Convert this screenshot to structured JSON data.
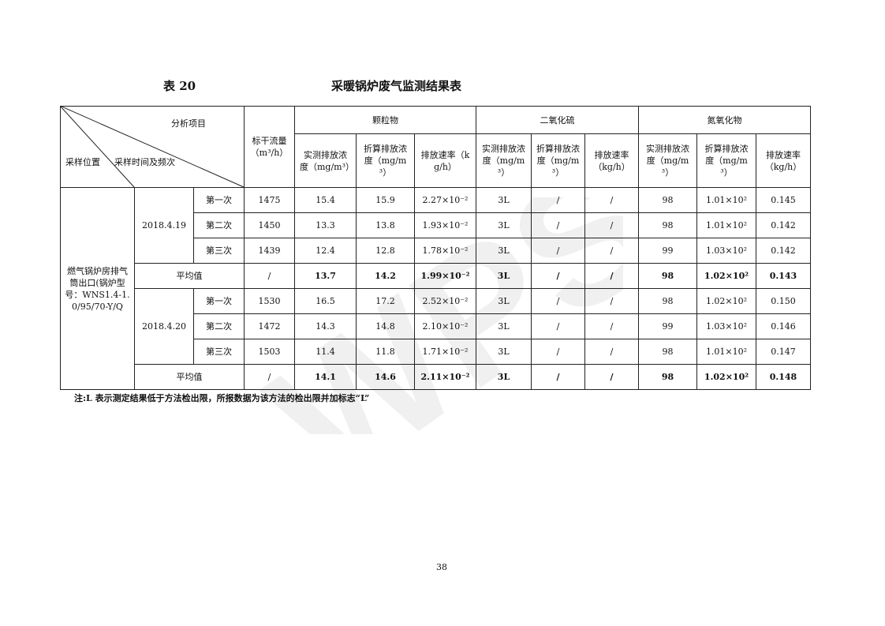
{
  "title_number": "表 20",
  "title": "采暖锅炉废气监测结果表",
  "header": {
    "corner_top": "分析项目",
    "corner_location": "采样位置",
    "corner_time": "采样时间及频次",
    "flow": "标干流量",
    "flow_unit": "（m³/h）",
    "groups": [
      "颗粒物",
      "二氧化硫",
      "氮氧化物"
    ],
    "subcols": [
      "实测排放浓度（mg/m³）",
      "折算排放浓度（mg/m³）",
      "排放速率（kg/h）",
      "实测排放浓度（mg/m³）",
      "折算排放浓度（mg/m³）",
      "排放速率（kg/h）",
      "实测排放浓度（mg/m³）",
      "折算排放浓度（mg/m³）",
      "排放速率（kg/h）"
    ]
  },
  "location": "燃气锅炉房排气筒出口(锅炉型号：WNS1.4-1.0/95/70-Y/Q",
  "groups": [
    {
      "date": "2018.4.19",
      "rows": [
        {
          "run": "第一次",
          "flow": "1475",
          "pm": [
            "15.4",
            "15.9",
            "2.27×10⁻²"
          ],
          "so2": [
            "3L",
            "/",
            "/"
          ],
          "nox": [
            "98",
            "1.01×10²",
            "0.145"
          ]
        },
        {
          "run": "第二次",
          "flow": "1450",
          "pm": [
            "13.3",
            "13.8",
            "1.93×10⁻²"
          ],
          "so2": [
            "3L",
            "/",
            "/"
          ],
          "nox": [
            "98",
            "1.01×10²",
            "0.142"
          ]
        },
        {
          "run": "第三次",
          "flow": "1439",
          "pm": [
            "12.4",
            "12.8",
            "1.78×10⁻²"
          ],
          "so2": [
            "3L",
            "/",
            "/"
          ],
          "nox": [
            "99",
            "1.03×10²",
            "0.142"
          ]
        }
      ],
      "avg": {
        "label": "平均值",
        "flow": "/",
        "pm": [
          "13.7",
          "14.2",
          "1.99×10⁻²"
        ],
        "so2": [
          "3L",
          "/",
          "/"
        ],
        "nox": [
          "98",
          "1.02×10²",
          "0.143"
        ]
      }
    },
    {
      "date": "2018.4.20",
      "rows": [
        {
          "run": "第一次",
          "flow": "1530",
          "pm": [
            "16.5",
            "17.2",
            "2.52×10⁻²"
          ],
          "so2": [
            "3L",
            "/",
            "/"
          ],
          "nox": [
            "98",
            "1.02×10²",
            "0.150"
          ]
        },
        {
          "run": "第二次",
          "flow": "1472",
          "pm": [
            "14.3",
            "14.8",
            "2.10×10⁻²"
          ],
          "so2": [
            "3L",
            "/",
            "/"
          ],
          "nox": [
            "99",
            "1.03×10²",
            "0.146"
          ]
        },
        {
          "run": "第三次",
          "flow": "1503",
          "pm": [
            "11.4",
            "11.8",
            "1.71×10⁻²"
          ],
          "so2": [
            "3L",
            "/",
            "/"
          ],
          "nox": [
            "98",
            "1.01×10²",
            "0.147"
          ]
        }
      ],
      "avg": {
        "label": "平均值",
        "flow": "/",
        "pm": [
          "14.1",
          "14.6",
          "2.11×10⁻²"
        ],
        "so2": [
          "3L",
          "/",
          "/"
        ],
        "nox": [
          "98",
          "1.02×10²",
          "0.148"
        ]
      }
    }
  ],
  "note": "注:L 表示测定结果低于方法检出限，所报数据为该方法的检出限并加标志“L”",
  "page_number": "38",
  "watermark": "WPS"
}
